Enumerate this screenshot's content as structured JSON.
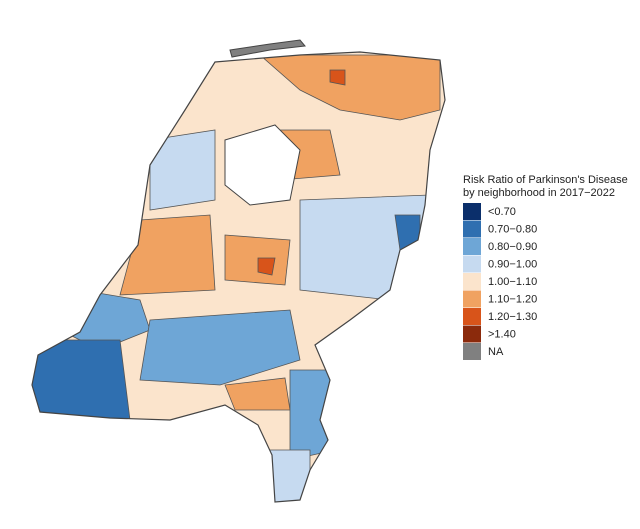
{
  "legend": {
    "title": [
      "Risk Ratio of Parkinson's Disease",
      "by neighborhood in 2017−2022"
    ],
    "items": [
      {
        "label": "<0.70",
        "color": "#0b2f6b"
      },
      {
        "label": "0.70−0.80",
        "color": "#2f6fb0"
      },
      {
        "label": "0.80−0.90",
        "color": "#6ea6d6"
      },
      {
        "label": "0.90−1.00",
        "color": "#c6daf0"
      },
      {
        "label": "1.00−1.10",
        "color": "#fbe4cc"
      },
      {
        "label": "1.10−1.20",
        "color": "#f0a261"
      },
      {
        "label": "1.20−1.30",
        "color": "#d8541a"
      },
      {
        "label": ">1.40",
        "color": "#8b2a0c"
      },
      {
        "label": "NA",
        "color": "#808080"
      }
    ]
  }
}
